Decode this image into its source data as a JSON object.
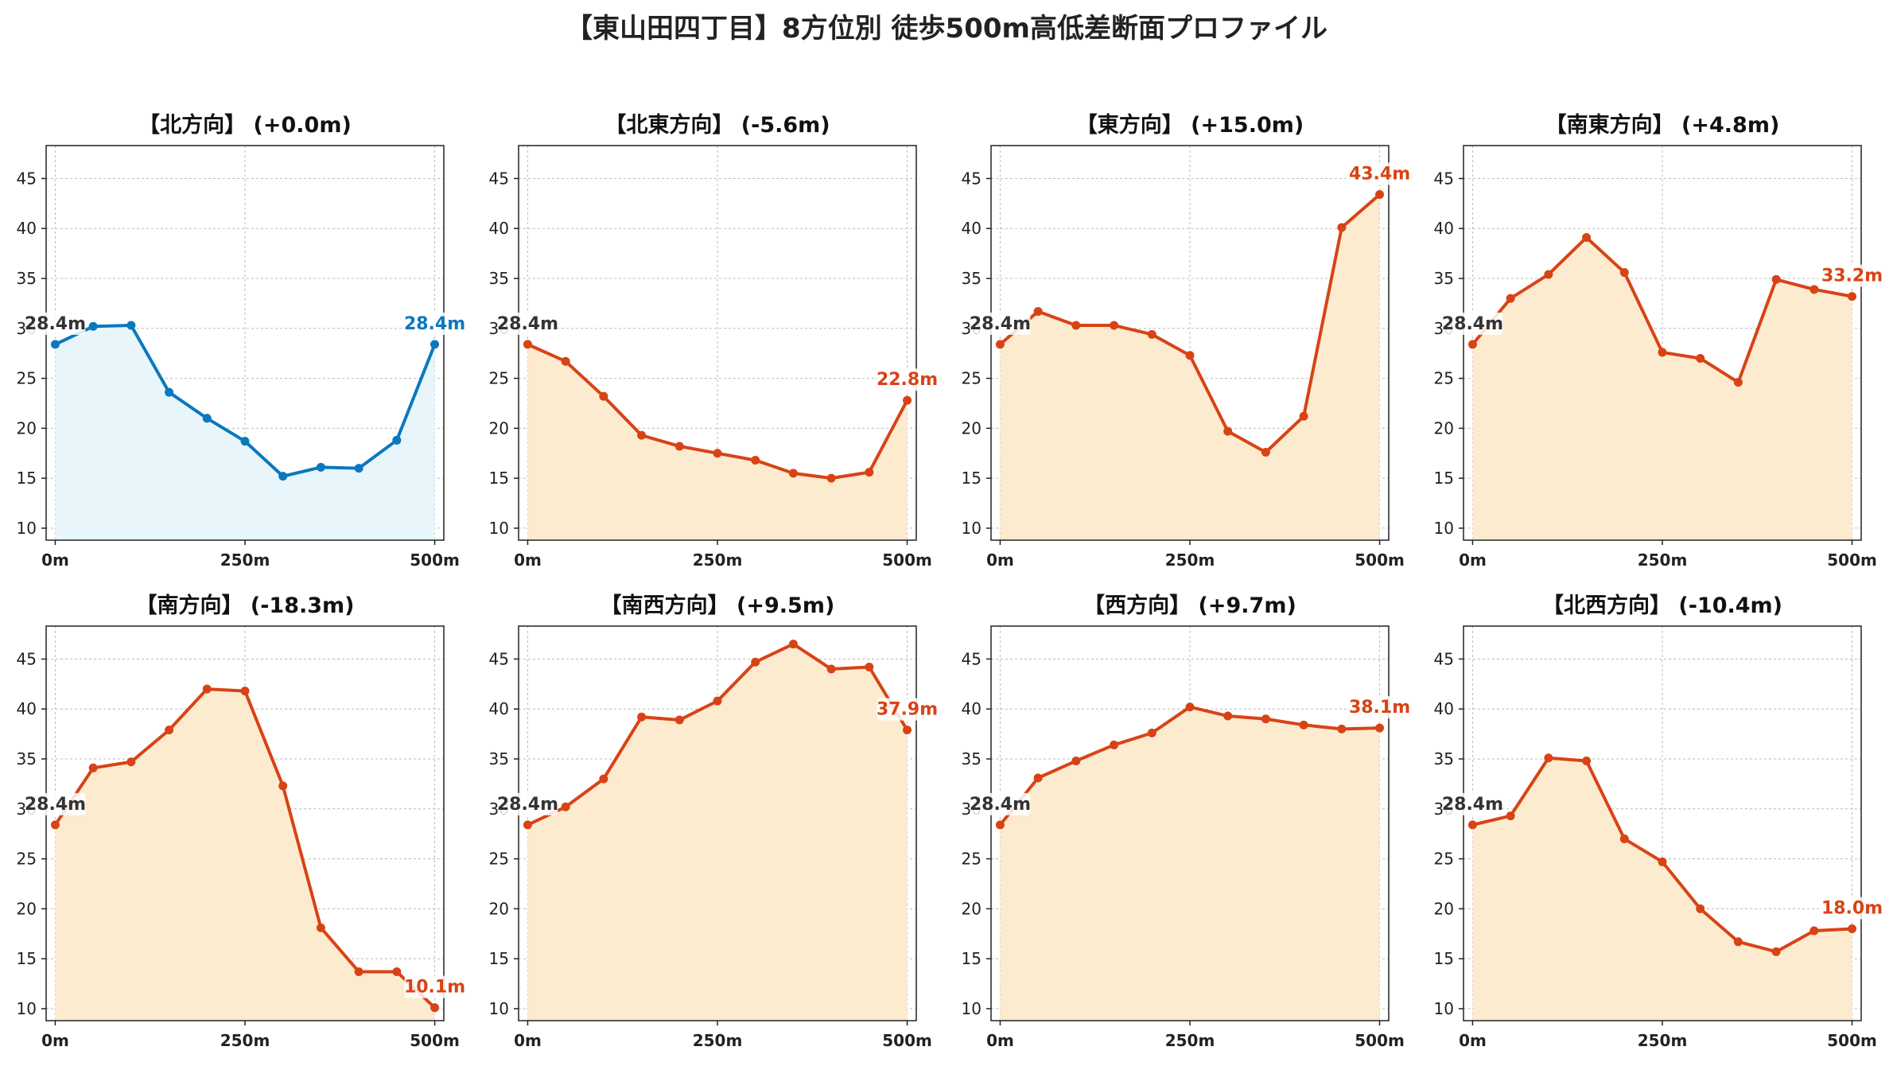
{
  "title": "【東山田四丁目】8方位別 徒歩500m高低差断面プロファイル",
  "colors": {
    "up": "#d84315",
    "up_fill": "#fdebd0",
    "flat": "#0a78be",
    "flat_fill": "#e8f6fb",
    "start_label": "#333333",
    "axis": "#222222",
    "grid": "#bbbbbb"
  },
  "chart_data": [
    {
      "type": "area",
      "title": "【北方向】 (+0.0m)",
      "color": "flat",
      "x": [
        0,
        50,
        100,
        150,
        200,
        250,
        300,
        350,
        400,
        450,
        500
      ],
      "y": [
        28.4,
        30.2,
        30.3,
        23.6,
        21.0,
        18.7,
        15.2,
        16.1,
        16.0,
        18.8,
        28.4
      ],
      "start_label": "28.4m",
      "end_label": "28.4m",
      "xticks": [
        "0m",
        "250m",
        "500m"
      ],
      "yticks": [
        10,
        15,
        20,
        25,
        30,
        35,
        40,
        45
      ],
      "ylim": [
        8.8,
        48.3
      ],
      "xlim": [
        -12,
        512
      ],
      "grid": true
    },
    {
      "type": "area",
      "title": "【北東方向】 (-5.6m)",
      "color": "up",
      "x": [
        0,
        50,
        100,
        150,
        200,
        250,
        300,
        350,
        400,
        450,
        500
      ],
      "y": [
        28.4,
        26.7,
        23.2,
        19.3,
        18.2,
        17.5,
        16.8,
        15.5,
        15.0,
        15.6,
        22.8
      ],
      "start_label": "28.4m",
      "end_label": "22.8m",
      "xticks": [
        "0m",
        "250m",
        "500m"
      ],
      "yticks": [
        10,
        15,
        20,
        25,
        30,
        35,
        40,
        45
      ],
      "ylim": [
        8.8,
        48.3
      ],
      "xlim": [
        -12,
        512
      ],
      "grid": true
    },
    {
      "type": "area",
      "title": "【東方向】 (+15.0m)",
      "color": "up",
      "x": [
        0,
        50,
        100,
        150,
        200,
        250,
        300,
        350,
        400,
        450,
        500
      ],
      "y": [
        28.4,
        31.7,
        30.3,
        30.3,
        29.4,
        27.3,
        19.7,
        17.6,
        21.2,
        40.1,
        43.4
      ],
      "start_label": "28.4m",
      "end_label": "43.4m",
      "xticks": [
        "0m",
        "250m",
        "500m"
      ],
      "yticks": [
        10,
        15,
        20,
        25,
        30,
        35,
        40,
        45
      ],
      "ylim": [
        8.8,
        48.3
      ],
      "xlim": [
        -12,
        512
      ],
      "grid": true
    },
    {
      "type": "area",
      "title": "【南東方向】 (+4.8m)",
      "color": "up",
      "x": [
        0,
        50,
        100,
        150,
        200,
        250,
        300,
        350,
        400,
        450,
        500
      ],
      "y": [
        28.4,
        33.0,
        35.4,
        39.1,
        35.6,
        27.6,
        27.0,
        24.6,
        34.9,
        33.9,
        33.2
      ],
      "start_label": "28.4m",
      "end_label": "33.2m",
      "xticks": [
        "0m",
        "250m",
        "500m"
      ],
      "yticks": [
        10,
        15,
        20,
        25,
        30,
        35,
        40,
        45
      ],
      "ylim": [
        8.8,
        48.3
      ],
      "xlim": [
        -12,
        512
      ],
      "grid": true
    },
    {
      "type": "area",
      "title": "【南方向】 (-18.3m)",
      "color": "up",
      "x": [
        0,
        50,
        100,
        150,
        200,
        250,
        300,
        350,
        400,
        450,
        500
      ],
      "y": [
        28.4,
        34.1,
        34.7,
        37.9,
        42.0,
        41.8,
        32.3,
        18.1,
        13.7,
        13.7,
        10.1
      ],
      "start_label": "28.4m",
      "end_label": "10.1m",
      "xticks": [
        "0m",
        "250m",
        "500m"
      ],
      "yticks": [
        10,
        15,
        20,
        25,
        30,
        35,
        40,
        45
      ],
      "ylim": [
        8.8,
        48.3
      ],
      "xlim": [
        -12,
        512
      ],
      "grid": true
    },
    {
      "type": "area",
      "title": "【南西方向】 (+9.5m)",
      "color": "up",
      "x": [
        0,
        50,
        100,
        150,
        200,
        250,
        300,
        350,
        400,
        450,
        500
      ],
      "y": [
        28.4,
        30.2,
        33.0,
        39.2,
        38.9,
        40.8,
        44.7,
        46.5,
        44.0,
        44.2,
        37.9
      ],
      "start_label": "28.4m",
      "end_label": "37.9m",
      "xticks": [
        "0m",
        "250m",
        "500m"
      ],
      "yticks": [
        10,
        15,
        20,
        25,
        30,
        35,
        40,
        45
      ],
      "ylim": [
        8.8,
        48.3
      ],
      "xlim": [
        -12,
        512
      ],
      "grid": true
    },
    {
      "type": "area",
      "title": "【西方向】 (+9.7m)",
      "color": "up",
      "x": [
        0,
        50,
        100,
        150,
        200,
        250,
        300,
        350,
        400,
        450,
        500
      ],
      "y": [
        28.4,
        33.1,
        34.8,
        36.4,
        37.6,
        40.2,
        39.3,
        39.0,
        38.4,
        38.0,
        38.1
      ],
      "start_label": "28.4m",
      "end_label": "38.1m",
      "xticks": [
        "0m",
        "250m",
        "500m"
      ],
      "yticks": [
        10,
        15,
        20,
        25,
        30,
        35,
        40,
        45
      ],
      "ylim": [
        8.8,
        48.3
      ],
      "xlim": [
        -12,
        512
      ],
      "grid": true
    },
    {
      "type": "area",
      "title": "【北西方向】 (-10.4m)",
      "color": "up",
      "x": [
        0,
        50,
        100,
        150,
        200,
        250,
        300,
        350,
        400,
        450,
        500
      ],
      "y": [
        28.4,
        29.3,
        35.1,
        34.8,
        27.0,
        24.7,
        20.0,
        16.7,
        15.7,
        17.8,
        18.0
      ],
      "start_label": "28.4m",
      "end_label": "18.0m",
      "xticks": [
        "0m",
        "250m",
        "500m"
      ],
      "yticks": [
        10,
        15,
        20,
        25,
        30,
        35,
        40,
        45
      ],
      "ylim": [
        8.8,
        48.3
      ],
      "xlim": [
        -12,
        512
      ],
      "grid": true
    }
  ]
}
